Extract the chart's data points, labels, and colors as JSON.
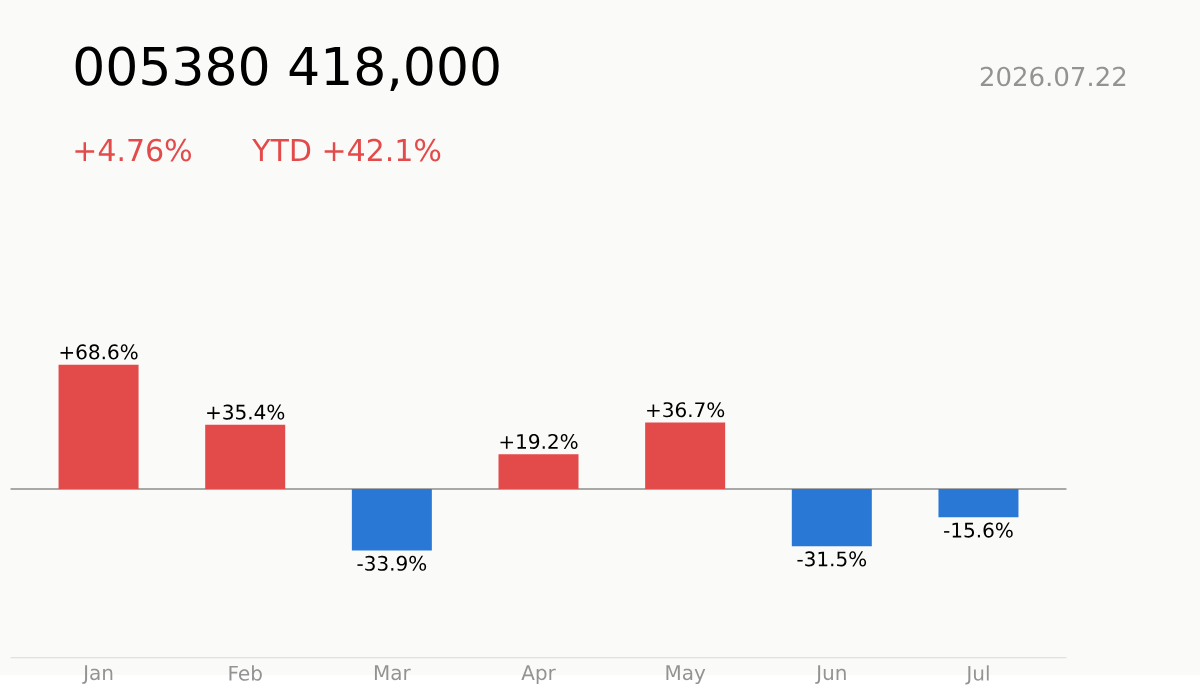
{
  "chart_data": {
    "type": "bar",
    "title": "005380  418,000",
    "subtitle": "+4.76%",
    "annotations": [
      "YTD +42.1%",
      "2026.07.22"
    ],
    "categories": [
      "Jan",
      "Feb",
      "Mar",
      "Apr",
      "May",
      "Jun",
      "Jul"
    ],
    "values": [
      68.6,
      35.4,
      -33.9,
      19.2,
      36.7,
      -31.5,
      -15.6
    ],
    "value_labels": [
      "+68.6%",
      "+35.4%",
      "-33.9%",
      "+19.2%",
      "+36.7%",
      "-31.5%",
      "-15.6%"
    ],
    "colors": [
      "#e34a4a",
      "#e34a4a",
      "#2a78d6",
      "#e34a4a",
      "#e34a4a",
      "#2a78d6",
      "#2a78d6"
    ],
    "ref_lines": [
      {
        "axis": "y",
        "value": 0,
        "color": "#8c8c8c"
      }
    ]
  }
}
